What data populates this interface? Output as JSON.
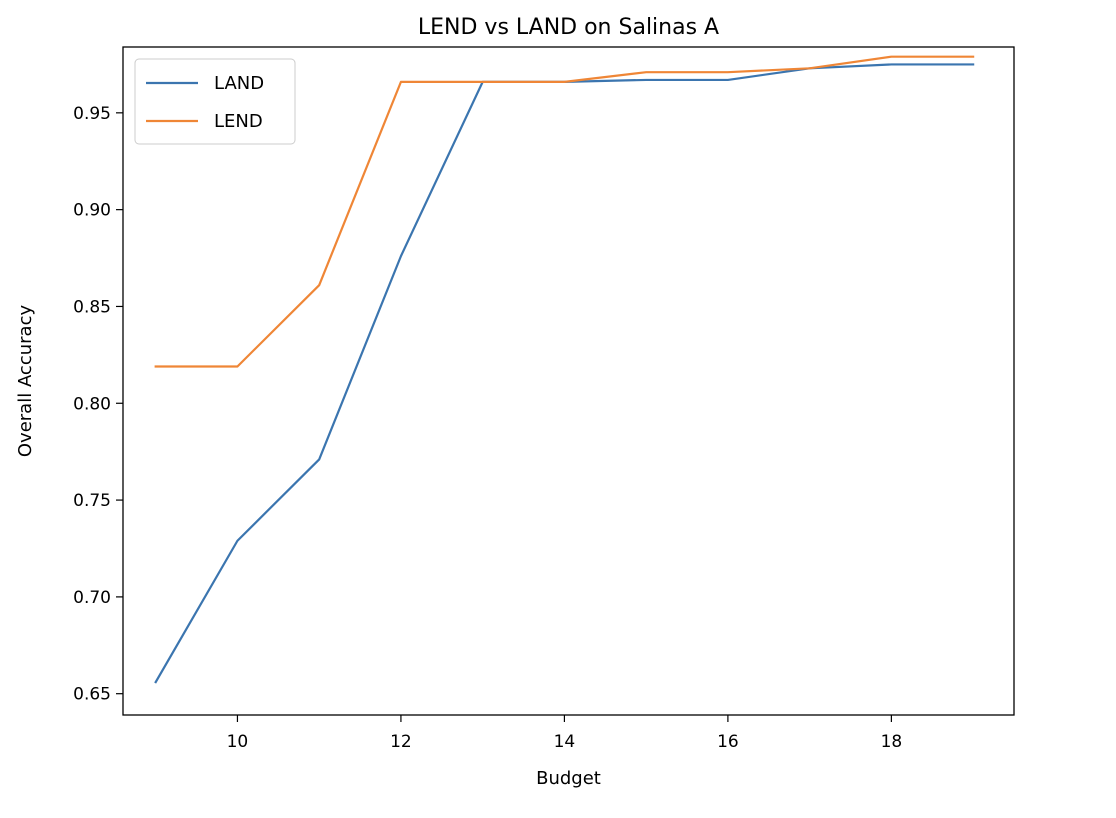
{
  "chart_data": {
    "type": "line",
    "title": "LEND vs LAND on Salinas A",
    "xlabel": "Budget",
    "ylabel": "Overall Accuracy",
    "xlim": [
      8.6,
      19.5
    ],
    "ylim": [
      0.639,
      0.984
    ],
    "xticks": [
      10,
      12,
      14,
      16,
      18
    ],
    "yticks": [
      0.65,
      0.7,
      0.75,
      0.8,
      0.85,
      0.9,
      0.95
    ],
    "grid": false,
    "legend_position": "top-left",
    "x": [
      9,
      10,
      11,
      12,
      13,
      14,
      15,
      16,
      17,
      18,
      19
    ],
    "series": [
      {
        "name": "LAND",
        "color": "#3b75af",
        "values": [
          0.656,
          0.729,
          0.771,
          0.876,
          0.966,
          0.966,
          0.967,
          0.967,
          0.973,
          0.975,
          0.975
        ]
      },
      {
        "name": "LEND",
        "color": "#ef8636",
        "values": [
          0.819,
          0.819,
          0.861,
          0.966,
          0.966,
          0.966,
          0.971,
          0.971,
          0.973,
          0.979,
          0.979
        ]
      }
    ]
  }
}
